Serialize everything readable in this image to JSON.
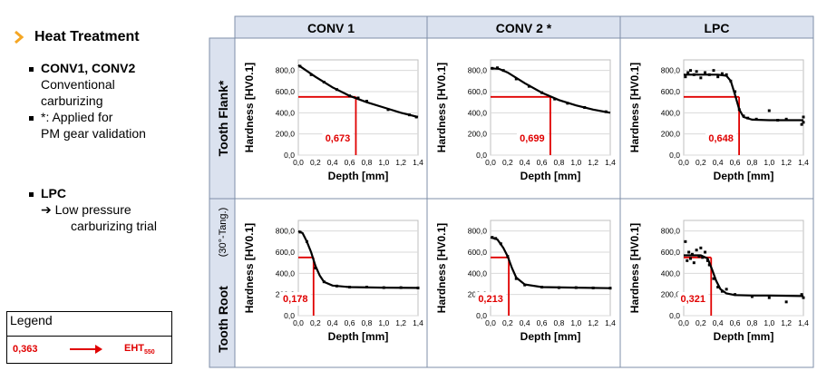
{
  "sidebar": {
    "heading": "Heat Treatment",
    "items": [
      {
        "title": "CONV1, CONV2",
        "lines": [
          "Conventional",
          "carburizing"
        ]
      },
      {
        "title": "*: Applied for",
        "lines": [
          "PM gear validation"
        ]
      },
      {
        "title": "LPC",
        "lines": [
          "➔ Low pressure",
          "carburizing trial"
        ]
      }
    ]
  },
  "legend": {
    "title": "Legend",
    "value": "0,363",
    "label": "EHT",
    "label_sub": "550"
  },
  "columns": [
    "CONV 1",
    "CONV 2 *",
    "LPC"
  ],
  "rows": [
    {
      "title": "Tooth Flank*",
      "subtitle": ""
    },
    {
      "title": "Tooth Root",
      "subtitle": "(30°-Tang.)"
    }
  ],
  "colors": {
    "header_bg": "#dbe2ef",
    "accent": "#e00000",
    "chevron": "#f5a623",
    "curve": "#000000"
  },
  "chart_data": [
    {
      "type": "scatter",
      "panel": "CONV 1 / Tooth Flank*",
      "xlabel": "Depth [mm]",
      "ylabel": "Hardness [HV0.1]",
      "xlim": [
        0,
        1.4
      ],
      "ylim": [
        0,
        900
      ],
      "xticks": [
        "0,0",
        "0,2",
        "0,4",
        "0,6",
        "0,8",
        "1,0",
        "1,2",
        "1,4"
      ],
      "yticks": [
        "0,0",
        "200,0",
        "400,0",
        "600,0",
        "800,0"
      ],
      "eht": 0.673,
      "eht_label": "0,673",
      "threshold": 550,
      "points": [
        [
          0.02,
          840
        ],
        [
          0.15,
          760
        ],
        [
          0.3,
          690
        ],
        [
          0.45,
          620
        ],
        [
          0.6,
          560
        ],
        [
          0.7,
          540
        ],
        [
          0.8,
          510
        ],
        [
          1.05,
          430
        ],
        [
          1.3,
          380
        ],
        [
          1.38,
          360
        ]
      ],
      "curve": [
        [
          0,
          850
        ],
        [
          0.2,
          740
        ],
        [
          0.4,
          640
        ],
        [
          0.6,
          560
        ],
        [
          0.8,
          500
        ],
        [
          1.0,
          450
        ],
        [
          1.2,
          400
        ],
        [
          1.4,
          360
        ]
      ]
    },
    {
      "type": "scatter",
      "panel": "CONV 2 * / Tooth Flank*",
      "xlabel": "Depth [mm]",
      "ylabel": "Hardness [HV0.1]",
      "xlim": [
        0,
        1.4
      ],
      "ylim": [
        0,
        900
      ],
      "xticks": [
        "0,0",
        "0,2",
        "0,4",
        "0,6",
        "0,8",
        "1,0",
        "1,2",
        "1,4"
      ],
      "yticks": [
        "0,0",
        "200,0",
        "400,0",
        "600,0",
        "800,0"
      ],
      "eht": 0.699,
      "eht_label": "0,699",
      "threshold": 550,
      "points": [
        [
          0.02,
          820
        ],
        [
          0.08,
          825
        ],
        [
          0.15,
          800
        ],
        [
          0.3,
          720
        ],
        [
          0.45,
          650
        ],
        [
          0.6,
          590
        ],
        [
          0.75,
          530
        ],
        [
          0.9,
          490
        ],
        [
          1.1,
          450
        ],
        [
          1.35,
          410
        ]
      ],
      "curve": [
        [
          0,
          820
        ],
        [
          0.1,
          815
        ],
        [
          0.2,
          780
        ],
        [
          0.4,
          680
        ],
        [
          0.6,
          590
        ],
        [
          0.8,
          520
        ],
        [
          1.0,
          470
        ],
        [
          1.2,
          430
        ],
        [
          1.4,
          400
        ]
      ]
    },
    {
      "type": "scatter",
      "panel": "LPC / Tooth Flank*",
      "xlabel": "Depth [mm]",
      "ylabel": "Hardness [HV0.1]",
      "xlim": [
        0,
        1.4
      ],
      "ylim": [
        0,
        900
      ],
      "xticks": [
        "0,0",
        "0,2",
        "0,4",
        "0,6",
        "0,8",
        "1,0",
        "1,2",
        "1,4"
      ],
      "yticks": [
        "0,0",
        "200,0",
        "400,0",
        "600,0",
        "800,0"
      ],
      "eht": 0.648,
      "eht_label": "0,648",
      "threshold": 550,
      "points": [
        [
          0.02,
          740
        ],
        [
          0.05,
          780
        ],
        [
          0.08,
          800
        ],
        [
          0.12,
          760
        ],
        [
          0.15,
          790
        ],
        [
          0.2,
          730
        ],
        [
          0.25,
          780
        ],
        [
          0.3,
          760
        ],
        [
          0.35,
          800
        ],
        [
          0.4,
          740
        ],
        [
          0.45,
          770
        ],
        [
          0.5,
          760
        ],
        [
          0.55,
          700
        ],
        [
          0.6,
          600
        ],
        [
          0.65,
          430
        ],
        [
          0.7,
          370
        ],
        [
          0.75,
          350
        ],
        [
          0.85,
          340
        ],
        [
          1.0,
          420
        ],
        [
          1.1,
          330
        ],
        [
          1.2,
          340
        ],
        [
          1.4,
          360
        ],
        [
          1.4,
          310
        ],
        [
          1.38,
          290
        ]
      ],
      "curve": [
        [
          0,
          760
        ],
        [
          0.4,
          760
        ],
        [
          0.5,
          750
        ],
        [
          0.55,
          700
        ],
        [
          0.6,
          570
        ],
        [
          0.65,
          430
        ],
        [
          0.7,
          360
        ],
        [
          0.8,
          335
        ],
        [
          1.0,
          330
        ],
        [
          1.4,
          330
        ]
      ]
    },
    {
      "type": "scatter",
      "panel": "CONV 1 / Tooth Root",
      "xlabel": "Depth [mm]",
      "ylabel": "Hardness [HV0.1]",
      "xlim": [
        0,
        1.4
      ],
      "ylim": [
        0,
        900
      ],
      "xticks": [
        "0,0",
        "0,2",
        "0,4",
        "0,6",
        "0,8",
        "1,0",
        "1,2",
        "1,4"
      ],
      "yticks": [
        "0,0",
        "200,0",
        "400,0",
        "600,0",
        "800,0"
      ],
      "eht": 0.178,
      "eht_label": "0,178",
      "threshold": 550,
      "points": [
        [
          0.02,
          790
        ],
        [
          0.1,
          700
        ],
        [
          0.2,
          450
        ],
        [
          0.3,
          320
        ],
        [
          0.45,
          280
        ],
        [
          0.6,
          270
        ],
        [
          0.8,
          270
        ],
        [
          1.0,
          265
        ],
        [
          1.2,
          265
        ],
        [
          1.4,
          262
        ]
      ],
      "curve": [
        [
          0,
          800
        ],
        [
          0.05,
          780
        ],
        [
          0.1,
          700
        ],
        [
          0.15,
          600
        ],
        [
          0.2,
          470
        ],
        [
          0.25,
          380
        ],
        [
          0.3,
          320
        ],
        [
          0.4,
          285
        ],
        [
          0.6,
          270
        ],
        [
          1.0,
          265
        ],
        [
          1.4,
          262
        ]
      ]
    },
    {
      "type": "scatter",
      "panel": "CONV 2 * / Tooth Root",
      "xlabel": "Depth [mm]",
      "ylabel": "Hardness [HV0.1]",
      "xlim": [
        0,
        1.4
      ],
      "ylim": [
        0,
        900
      ],
      "xticks": [
        "0,0",
        "0,2",
        "0,4",
        "0,6",
        "0,8",
        "1,0",
        "1,2",
        "1,4"
      ],
      "yticks": [
        "0,0",
        "200,0",
        "400,0",
        "600,0",
        "800,0"
      ],
      "eht": 0.213,
      "eht_label": "0,213",
      "threshold": 550,
      "points": [
        [
          0.02,
          740
        ],
        [
          0.06,
          730
        ],
        [
          0.12,
          680
        ],
        [
          0.2,
          560
        ],
        [
          0.3,
          350
        ],
        [
          0.4,
          290
        ],
        [
          0.6,
          270
        ],
        [
          0.8,
          265
        ],
        [
          1.0,
          265
        ],
        [
          1.2,
          262
        ],
        [
          1.4,
          260
        ]
      ],
      "curve": [
        [
          0,
          740
        ],
        [
          0.08,
          720
        ],
        [
          0.15,
          640
        ],
        [
          0.2,
          560
        ],
        [
          0.25,
          450
        ],
        [
          0.3,
          360
        ],
        [
          0.4,
          295
        ],
        [
          0.6,
          270
        ],
        [
          1.0,
          265
        ],
        [
          1.4,
          260
        ]
      ]
    },
    {
      "type": "scatter",
      "panel": "LPC / Tooth Root",
      "xlabel": "Depth [mm]",
      "ylabel": "Hardness [HV0.1]",
      "xlim": [
        0,
        1.4
      ],
      "ylim": [
        0,
        900
      ],
      "xticks": [
        "0,0",
        "0,2",
        "0,4",
        "0,6",
        "0,8",
        "1,0",
        "1,2",
        "1,4"
      ],
      "yticks": [
        "0,0",
        "200,0",
        "400,0",
        "600,0",
        "800,0"
      ],
      "eht": 0.321,
      "eht_label": "0,321",
      "threshold": 550,
      "points": [
        [
          0.02,
          700
        ],
        [
          0.04,
          520
        ],
        [
          0.06,
          600
        ],
        [
          0.08,
          540
        ],
        [
          0.1,
          580
        ],
        [
          0.12,
          500
        ],
        [
          0.15,
          620
        ],
        [
          0.18,
          560
        ],
        [
          0.2,
          640
        ],
        [
          0.22,
          550
        ],
        [
          0.25,
          600
        ],
        [
          0.28,
          520
        ],
        [
          0.3,
          480
        ],
        [
          0.35,
          350
        ],
        [
          0.4,
          270
        ],
        [
          0.45,
          230
        ],
        [
          0.5,
          250
        ],
        [
          0.6,
          200
        ],
        [
          0.8,
          180
        ],
        [
          1.0,
          170
        ],
        [
          1.2,
          130
        ],
        [
          1.38,
          200
        ],
        [
          1.4,
          170
        ]
      ],
      "curve": [
        [
          0,
          570
        ],
        [
          0.2,
          570
        ],
        [
          0.28,
          540
        ],
        [
          0.33,
          440
        ],
        [
          0.38,
          330
        ],
        [
          0.43,
          250
        ],
        [
          0.5,
          210
        ],
        [
          0.6,
          195
        ],
        [
          0.8,
          190
        ],
        [
          1.0,
          190
        ],
        [
          1.4,
          185
        ]
      ]
    }
  ]
}
